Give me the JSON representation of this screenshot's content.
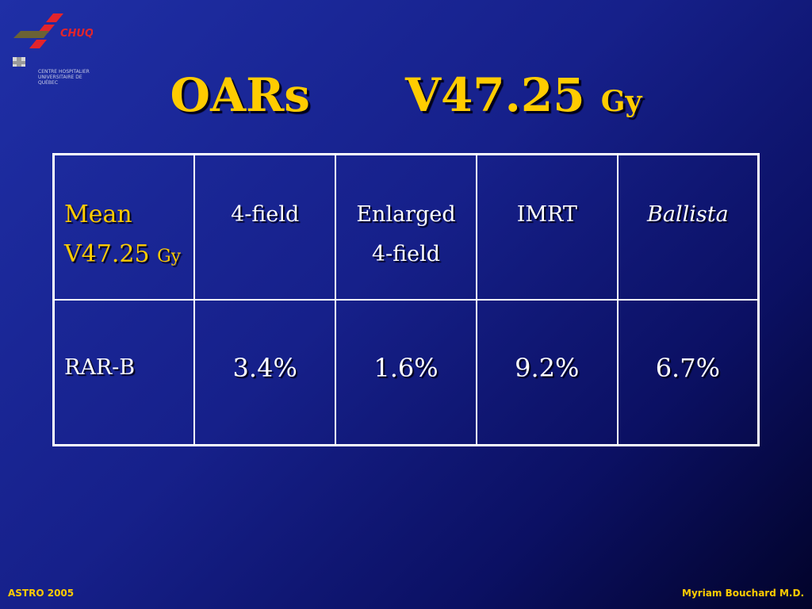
{
  "logo": {
    "brand": "CHUQ",
    "subtitle_line1": "CENTRE HOSPITALIER",
    "subtitle_line2": "UNIVERSITAIRE DE QUÉBEC"
  },
  "title": {
    "left": "OARs",
    "metric": "V47.25",
    "unit": "Gy"
  },
  "table": {
    "corner": {
      "line1": "Mean",
      "line2_main": "V47.25",
      "line2_unit": "Gy"
    },
    "headers": [
      {
        "line1": "4-field",
        "line2": ""
      },
      {
        "line1": "Enlarged",
        "line2": "4-field"
      },
      {
        "line1": "IMRT",
        "line2": ""
      },
      {
        "line1": "Ballista",
        "line2": ""
      }
    ],
    "rows": [
      {
        "label": "RAR-B",
        "values": [
          "3.4%",
          "1.6%",
          "9.2%",
          "6.7%"
        ]
      }
    ]
  },
  "footer": {
    "left": "ASTRO 2005",
    "right": "Myriam Bouchard M.D."
  },
  "colors": {
    "accent": "#ffcc00",
    "text": "#ffffff",
    "background_top": "#1f2fa6",
    "background_bottom": "#02032a",
    "logo_red": "#e3242b",
    "logo_olive": "#6b6235"
  }
}
